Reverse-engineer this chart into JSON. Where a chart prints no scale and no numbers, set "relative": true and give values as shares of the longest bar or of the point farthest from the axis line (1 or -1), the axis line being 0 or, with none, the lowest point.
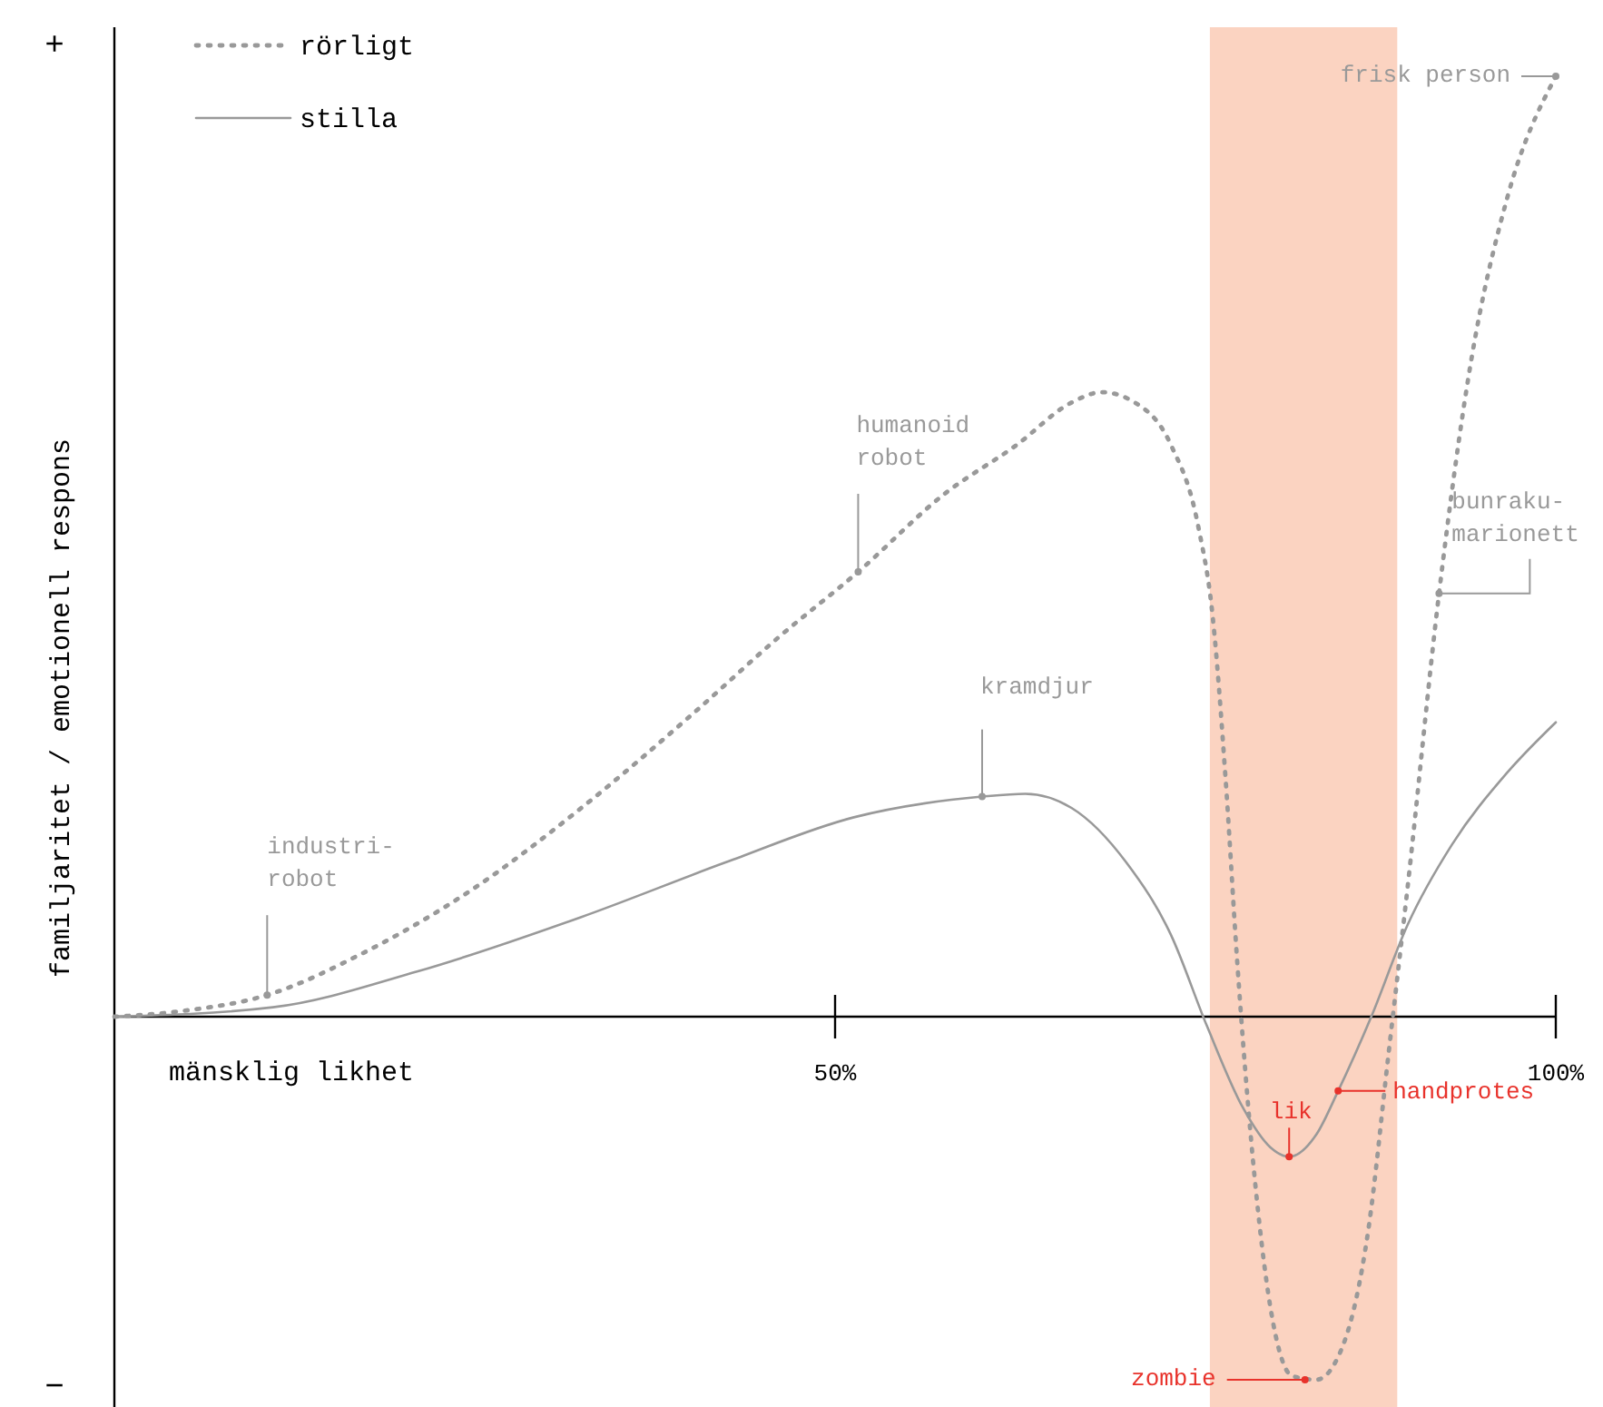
{
  "chart_data": {
    "type": "line",
    "relative": true,
    "xlabel": "mänsklig likhet",
    "ylabel": "familjaritet / emotionell respons",
    "xlim": [
      0,
      100
    ],
    "xticks": [
      {
        "value": 50,
        "label": "50%"
      },
      {
        "value": 100,
        "label": "100%"
      }
    ],
    "legend": "top left",
    "series": [
      {
        "name": "rörligt",
        "color": "#999999",
        "line_style": "dotted",
        "x": [
          0,
          4.7,
          10.6,
          17.3,
          24.8,
          32.4,
          39.9,
          46.2,
          51.6,
          57.6,
          62.6,
          66.4,
          68.5,
          70.8,
          73.3,
          75.2,
          76.2,
          77.1,
          77.9,
          79.0,
          80.2,
          81.7,
          83.4,
          85.3,
          87.0,
          88.4,
          89.7,
          91.9,
          94.1,
          96.6,
          100
        ],
        "values": [
          0,
          0.006,
          0.023,
          0.068,
          0.135,
          0.222,
          0.319,
          0.405,
          0.473,
          0.556,
          0.608,
          0.653,
          0.664,
          0.653,
          0.608,
          0.521,
          0.425,
          0.251,
          0.058,
          -0.154,
          -0.309,
          -0.382,
          -0.386,
          -0.347,
          -0.226,
          -0.039,
          0.135,
          0.45,
          0.695,
          0.869,
          1.0
        ]
      },
      {
        "name": "stilla",
        "color": "#999999",
        "line_style": "solid",
        "x": [
          0,
          11.0,
          21.0,
          32.4,
          42.4,
          51.3,
          60.2,
          63.2,
          66.4,
          70.2,
          73.3,
          75.8,
          78.3,
          80.2,
          81.5,
          83.4,
          84.9,
          87.2,
          89.7,
          92.8,
          96.6,
          100
        ],
        "values": [
          0,
          0.01,
          0.048,
          0.106,
          0.164,
          0.212,
          0.234,
          0.237,
          0.222,
          0.164,
          0.087,
          -0.01,
          -0.097,
          -0.139,
          -0.149,
          -0.125,
          -0.079,
          0,
          0.097,
          0.183,
          0.259,
          0.313
        ]
      }
    ],
    "bands": [
      {
        "axis": "x",
        "from": 76,
        "to": 89,
        "color": "#fbd3c1"
      }
    ],
    "annotations": [
      {
        "text": "industri-\nrobot",
        "x": 10.6,
        "y": 0.023
      },
      {
        "text": "humanoid\nrobot",
        "x": 51.6,
        "y": 0.473
      },
      {
        "text": "kramdjur",
        "x": 60.2,
        "y": 0.234
      },
      {
        "text": "bunraku-\nmarionett",
        "x": 91.9,
        "y": 0.45
      },
      {
        "text": "frisk person",
        "x": 100,
        "y": 1.0
      },
      {
        "text": "lik",
        "x": 81.5,
        "y": -0.149
      },
      {
        "text": "handprotes",
        "x": 84.9,
        "y": -0.079
      },
      {
        "text": "zombie",
        "x": 82.6,
        "y": -0.386
      },
      "+",
      "−"
    ]
  }
}
